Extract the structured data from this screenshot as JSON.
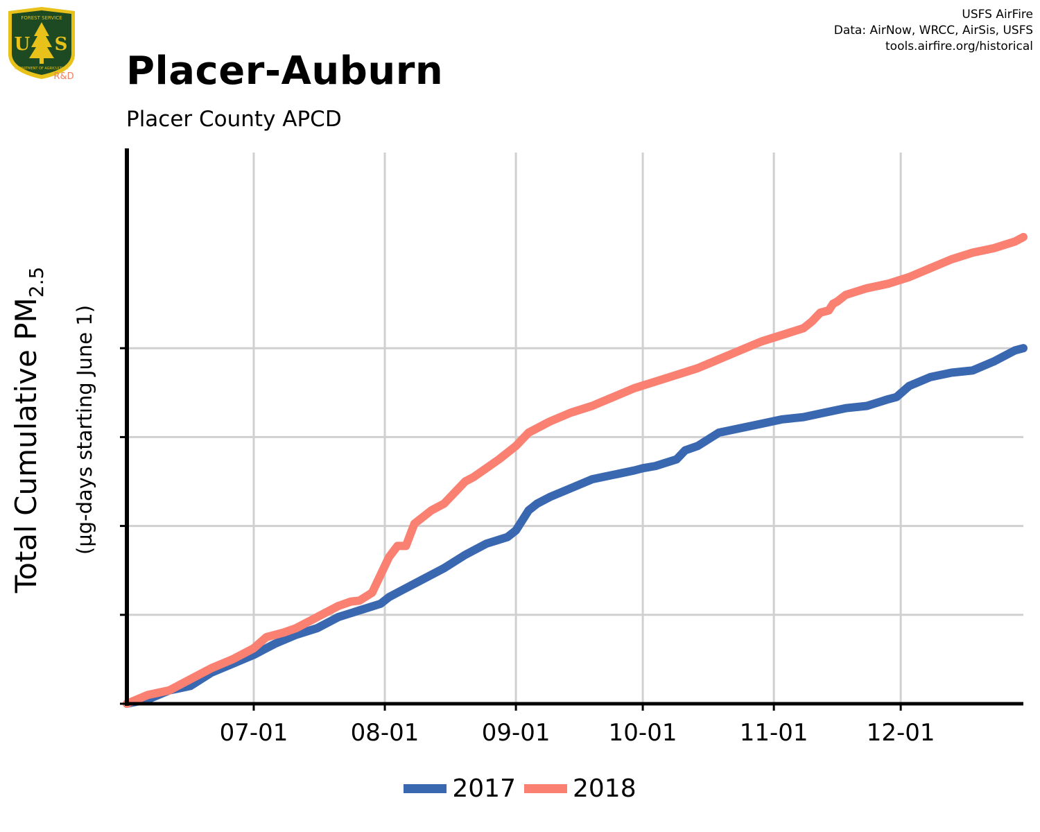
{
  "header": {
    "title": "Placer-Auburn",
    "subtitle": "Placer County APCD",
    "credits": [
      "USFS AirFire",
      "Data: AirNow, WRCC, AirSis, USFS",
      "tools.airfire.org/historical"
    ]
  },
  "logo": {
    "top_text": "FOREST SERVICE",
    "letters_left": "U",
    "letters_right": "S",
    "bottom_text": "DEPARTMENT OF AGRICULTURE",
    "tag": "R&D",
    "colors": {
      "green": "#1e4a23",
      "gold": "#e8c21a",
      "tag": "#f08060"
    }
  },
  "chart_data": {
    "type": "line",
    "ylabel": "Total Cumulative PM",
    "ylabel_subscript": "2.5",
    "ylabel_note": "(µg-days starting June 1)",
    "x_ticks": [
      "07-01",
      "08-01",
      "09-01",
      "10-01",
      "11-01",
      "12-01"
    ],
    "x_tick_days": [
      30,
      61,
      92,
      122,
      153,
      183
    ],
    "x_range_days": [
      0,
      212
    ],
    "y_range": [
      0,
      100
    ],
    "y_gridlines": [
      20,
      40,
      60,
      80
    ],
    "grid": true,
    "legend_position": "bottom",
    "series": [
      {
        "name": "2017",
        "color": "#3a68b0",
        "points": [
          [
            0,
            0
          ],
          [
            5,
            1
          ],
          [
            10,
            3
          ],
          [
            15,
            4
          ],
          [
            20,
            7
          ],
          [
            25,
            9
          ],
          [
            30,
            11
          ],
          [
            35,
            13.5
          ],
          [
            40,
            15.5
          ],
          [
            45,
            17
          ],
          [
            50,
            19.5
          ],
          [
            55,
            21
          ],
          [
            60,
            22.5
          ],
          [
            62,
            24
          ],
          [
            65,
            25.5
          ],
          [
            70,
            28
          ],
          [
            75,
            30.5
          ],
          [
            80,
            33.5
          ],
          [
            85,
            36
          ],
          [
            90,
            37.5
          ],
          [
            92,
            39
          ],
          [
            95,
            43.5
          ],
          [
            97,
            45
          ],
          [
            100,
            46.5
          ],
          [
            105,
            48.5
          ],
          [
            110,
            50.5
          ],
          [
            115,
            51.5
          ],
          [
            120,
            52.5
          ],
          [
            122,
            53
          ],
          [
            125,
            53.5
          ],
          [
            130,
            55
          ],
          [
            132,
            57
          ],
          [
            135,
            58
          ],
          [
            140,
            61
          ],
          [
            145,
            62
          ],
          [
            150,
            63
          ],
          [
            155,
            64
          ],
          [
            160,
            64.5
          ],
          [
            165,
            65.5
          ],
          [
            170,
            66.5
          ],
          [
            175,
            67
          ],
          [
            180,
            68.5
          ],
          [
            182,
            69
          ],
          [
            185,
            71.5
          ],
          [
            190,
            73.5
          ],
          [
            195,
            74.5
          ],
          [
            200,
            75
          ],
          [
            205,
            77
          ],
          [
            210,
            79.5
          ],
          [
            212,
            80
          ]
        ]
      },
      {
        "name": "2018",
        "color": "#fa8072",
        "points": [
          [
            0,
            0
          ],
          [
            5,
            2
          ],
          [
            10,
            3
          ],
          [
            15,
            5.5
          ],
          [
            20,
            8
          ],
          [
            25,
            10
          ],
          [
            30,
            12.5
          ],
          [
            33,
            15
          ],
          [
            37,
            16
          ],
          [
            40,
            17
          ],
          [
            45,
            19.5
          ],
          [
            50,
            22
          ],
          [
            53,
            23
          ],
          [
            55,
            23.2
          ],
          [
            58,
            25
          ],
          [
            60,
            29
          ],
          [
            62,
            33
          ],
          [
            64,
            35.5
          ],
          [
            66,
            35.5
          ],
          [
            67,
            38
          ],
          [
            68,
            40.5
          ],
          [
            70,
            42
          ],
          [
            72,
            43.5
          ],
          [
            75,
            45
          ],
          [
            78,
            48
          ],
          [
            80,
            50
          ],
          [
            82,
            51
          ],
          [
            85,
            53
          ],
          [
            88,
            55
          ],
          [
            92,
            58
          ],
          [
            95,
            61
          ],
          [
            100,
            63.5
          ],
          [
            105,
            65.5
          ],
          [
            110,
            67
          ],
          [
            115,
            69
          ],
          [
            120,
            71
          ],
          [
            125,
            72.5
          ],
          [
            130,
            74
          ],
          [
            135,
            75.5
          ],
          [
            140,
            77.5
          ],
          [
            145,
            79.5
          ],
          [
            150,
            81.5
          ],
          [
            155,
            83
          ],
          [
            160,
            84.5
          ],
          [
            162,
            86
          ],
          [
            164,
            88
          ],
          [
            166,
            88.5
          ],
          [
            167,
            90
          ],
          [
            168,
            90.5
          ],
          [
            170,
            92
          ],
          [
            175,
            93.5
          ],
          [
            180,
            94.5
          ],
          [
            185,
            96
          ],
          [
            190,
            98
          ],
          [
            195,
            100
          ],
          [
            200,
            101.5
          ],
          [
            205,
            102.5
          ],
          [
            210,
            104
          ],
          [
            212,
            105
          ]
        ]
      }
    ]
  }
}
